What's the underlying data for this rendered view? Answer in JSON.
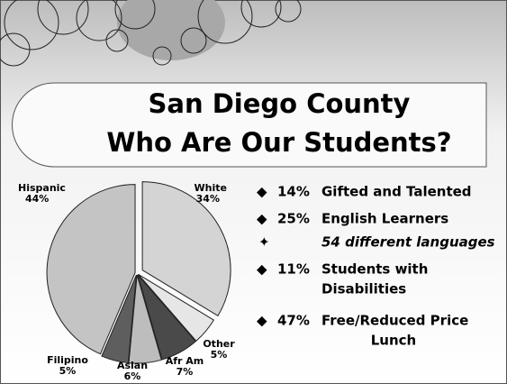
{
  "slide": {
    "title": [
      "San Diego County",
      "Who Are Our Students?"
    ],
    "bullets": [
      {
        "pct": "14%",
        "lines": [
          "Gifted and Talented"
        ]
      },
      {
        "pct": "25%",
        "lines": [
          "English Learners"
        ]
      },
      {
        "sub": "54 different languages"
      },
      {
        "pct": "11%",
        "lines": [
          "Students with",
          "Disabilities"
        ]
      },
      {
        "pct": "47%",
        "lines": [
          "Free/Reduced Price",
          "Lunch"
        ]
      }
    ]
  },
  "chart_data": {
    "type": "pie",
    "categories": [
      "White",
      "Other",
      "Afr Am",
      "Asian",
      "Filipino",
      "Hispanic"
    ],
    "values": [
      34,
      5,
      7,
      6,
      5,
      44
    ],
    "value_labels": [
      "34%",
      "5%",
      "7%",
      "6%",
      "5%",
      "44%"
    ],
    "colors": [
      "#d4d4d4",
      "#e6e6e6",
      "#4a4a4a",
      "#bdbdbd",
      "#5e5e5e",
      "#c4c4c4"
    ]
  }
}
